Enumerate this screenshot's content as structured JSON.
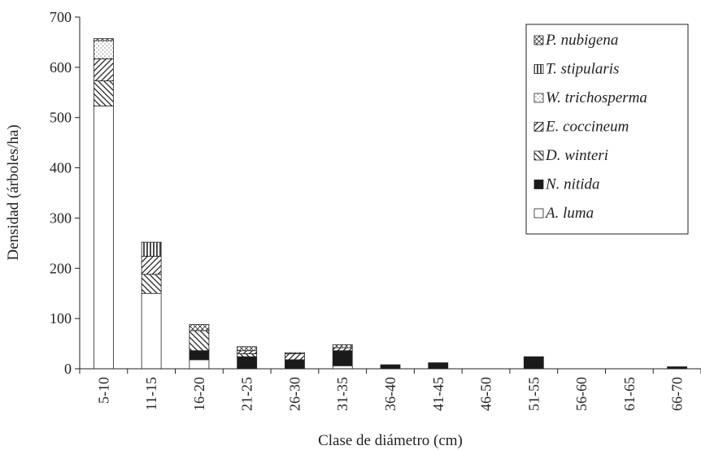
{
  "chart_data": {
    "type": "bar",
    "stacked": true,
    "xlabel": "Clase de diámetro (cm)",
    "ylabel": "Densidad (árboles/ha)",
    "ylim": [
      0,
      700
    ],
    "yticks": [
      0,
      100,
      200,
      300,
      400,
      500,
      600,
      700
    ],
    "grid": false,
    "legend_position": "top-right",
    "categories": [
      "5-10",
      "11-15",
      "16-20",
      "21-25",
      "26-30",
      "31-35",
      "36-40",
      "41-45",
      "46-50",
      "51-55",
      "56-60",
      "61-65",
      "66-70"
    ],
    "series": [
      {
        "name": "A. luma",
        "pattern": "white",
        "values": [
          523,
          150,
          18,
          0,
          0,
          6,
          0,
          0,
          0,
          0,
          0,
          0,
          0
        ]
      },
      {
        "name": "N. nitida",
        "pattern": "black",
        "values": [
          0,
          0,
          18,
          24,
          18,
          30,
          8,
          12,
          0,
          24,
          0,
          0,
          4
        ]
      },
      {
        "name": "D. winteri",
        "pattern": "diag-back",
        "values": [
          50,
          38,
          40,
          6,
          0,
          0,
          0,
          0,
          0,
          0,
          0,
          0,
          0
        ]
      },
      {
        "name": "E. coccineum",
        "pattern": "diag-fwd",
        "values": [
          44,
          36,
          0,
          6,
          12,
          6,
          0,
          0,
          0,
          0,
          0,
          0,
          0
        ]
      },
      {
        "name": "W. trichosperma",
        "pattern": "dots",
        "values": [
          36,
          0,
          0,
          0,
          0,
          0,
          0,
          0,
          0,
          0,
          0,
          0,
          0
        ]
      },
      {
        "name": "T. stipularis",
        "pattern": "vertical",
        "values": [
          0,
          28,
          0,
          0,
          0,
          0,
          0,
          0,
          0,
          0,
          0,
          0,
          0
        ]
      },
      {
        "name": "P. nubigena",
        "pattern": "crosshatch",
        "values": [
          4,
          0,
          12,
          8,
          2,
          6,
          0,
          0,
          0,
          0,
          0,
          0,
          0
        ]
      }
    ]
  }
}
